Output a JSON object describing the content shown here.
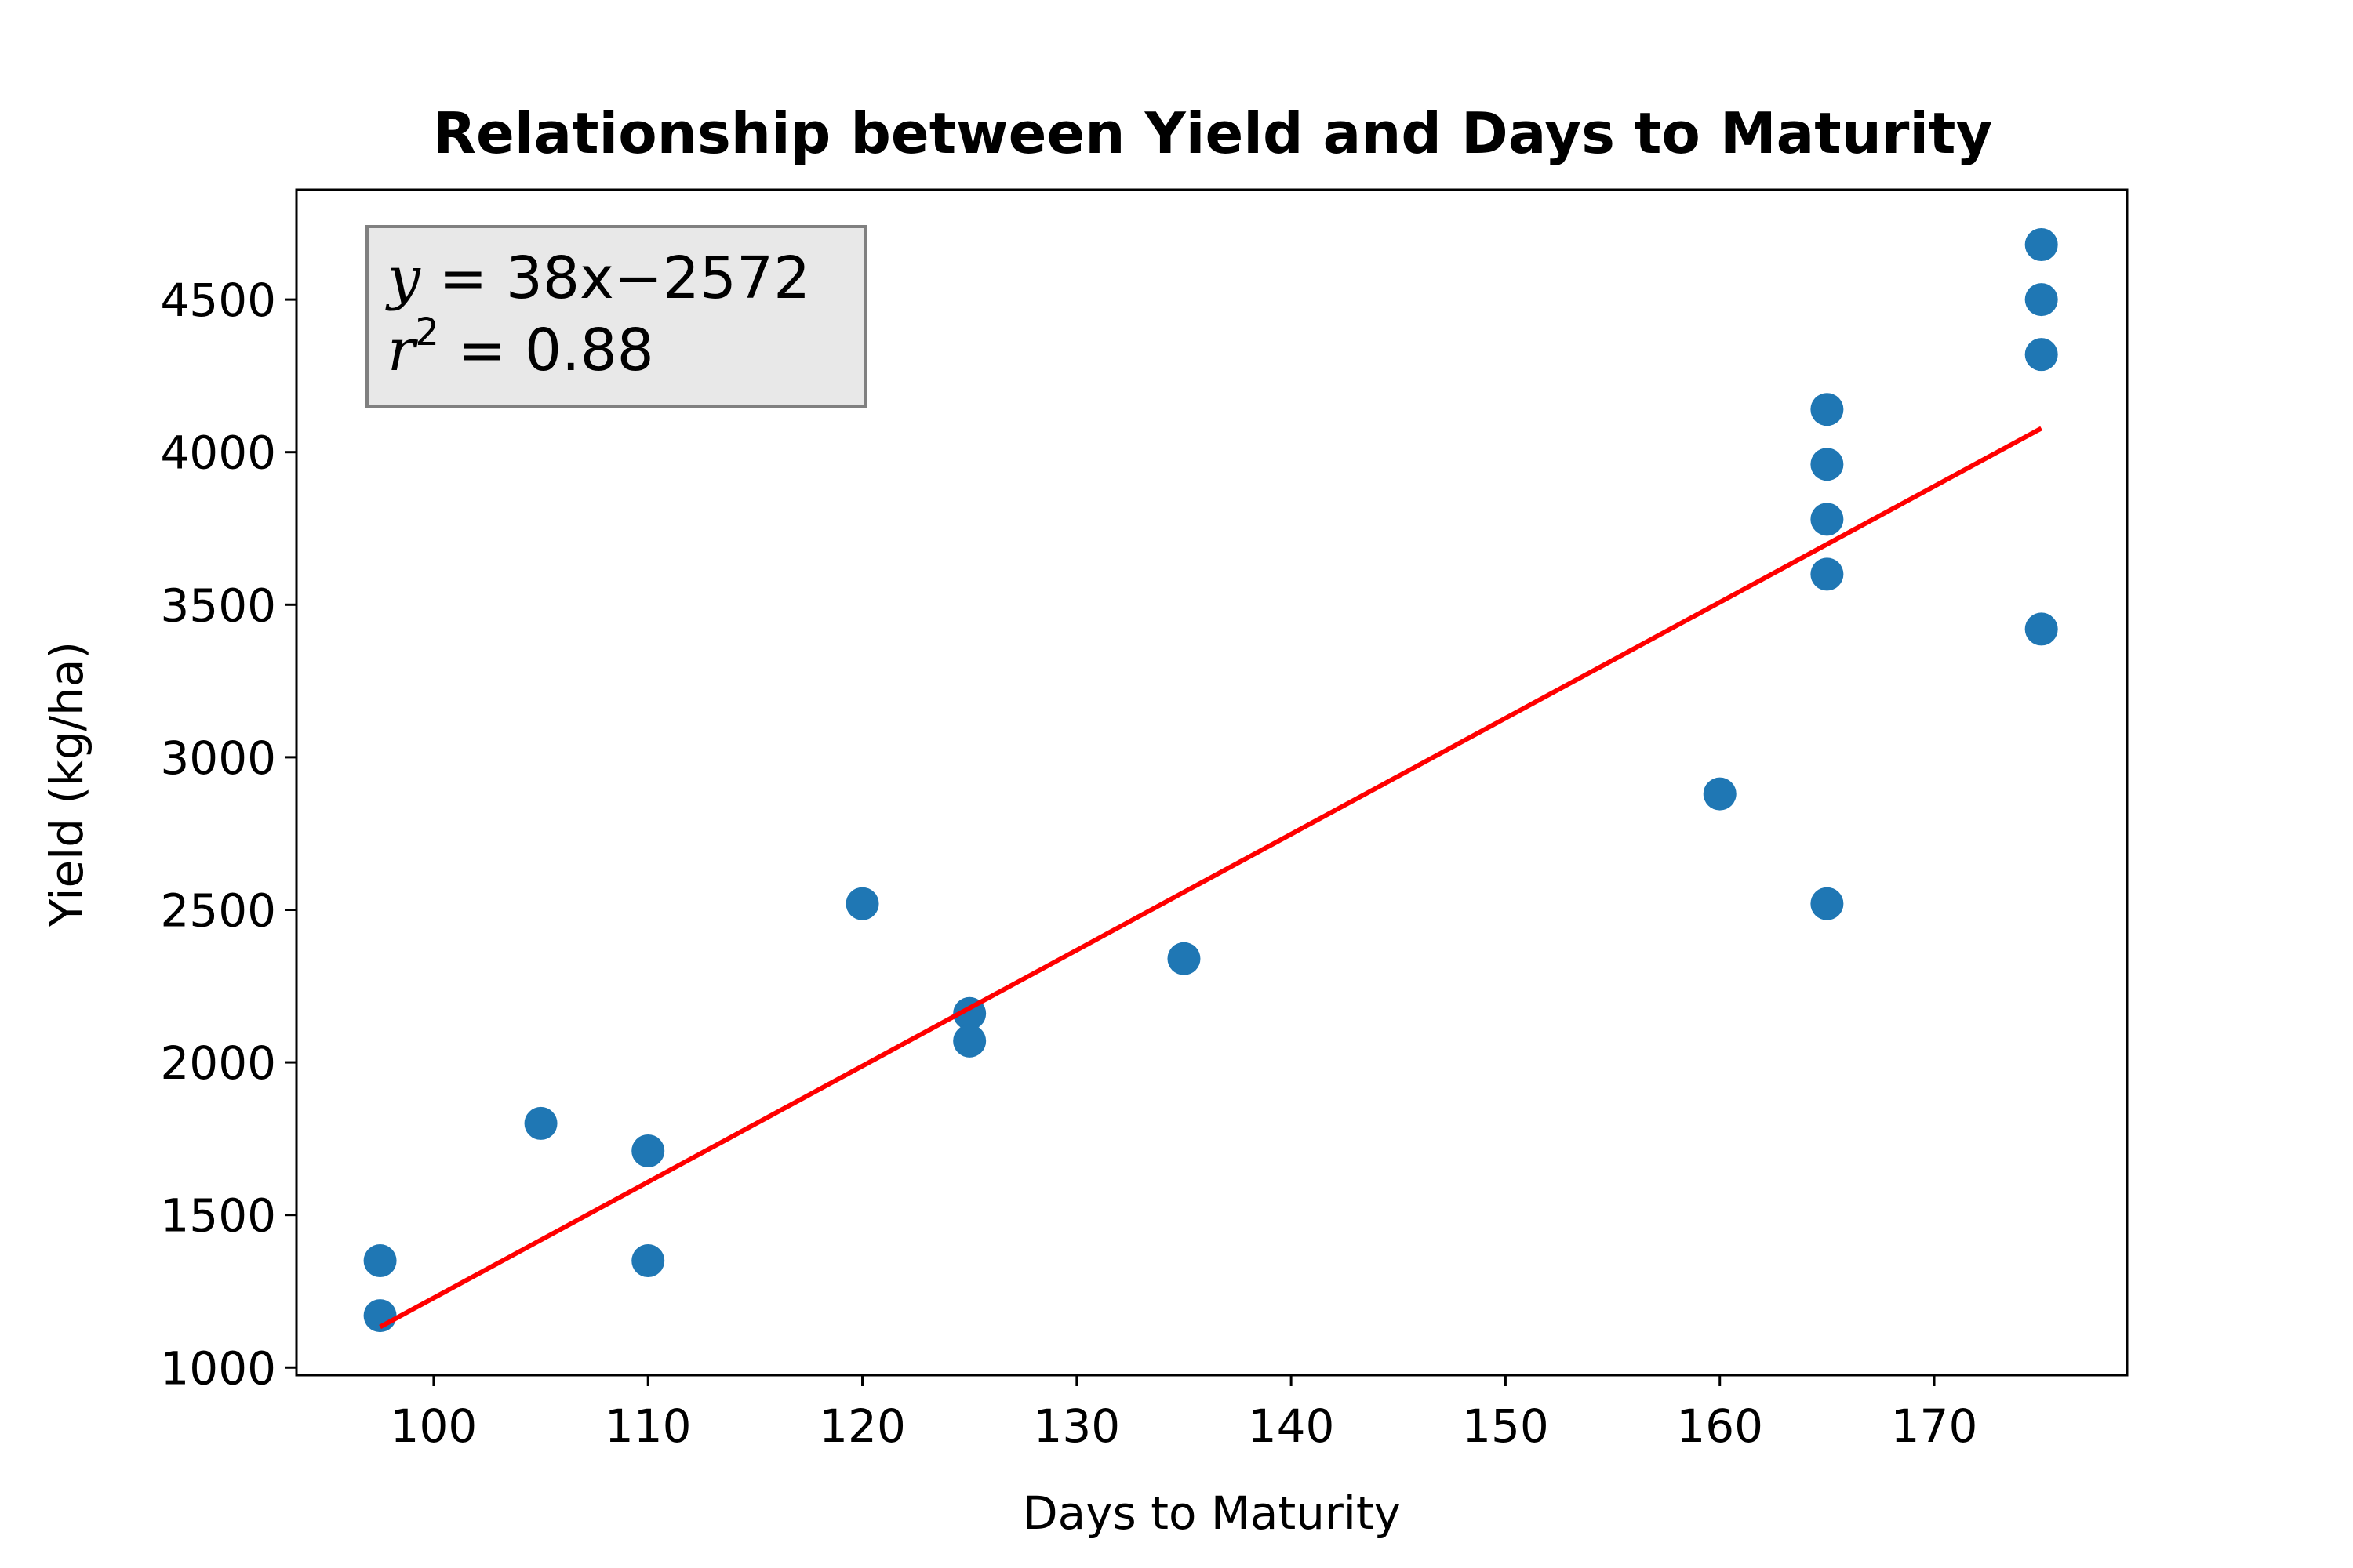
{
  "chart_data": {
    "type": "scatter",
    "title": "Relationship between Yield and Days to Maturity",
    "xlabel": "Days to Maturity",
    "ylabel": "Yield (kg/ha)",
    "xlim": [
      93.6,
      179.0
    ],
    "ylim": [
      975,
      4860
    ],
    "xticks": [
      100,
      110,
      120,
      130,
      140,
      150,
      160,
      170
    ],
    "yticks": [
      1000,
      1500,
      2000,
      2500,
      3000,
      3500,
      4000,
      4500
    ],
    "grid": false,
    "series": [
      {
        "color": "#1f77b4",
        "points": [
          {
            "x": 97.5,
            "y": 1350
          },
          {
            "x": 97.5,
            "y": 1170
          },
          {
            "x": 105,
            "y": 1800
          },
          {
            "x": 110,
            "y": 1710
          },
          {
            "x": 110,
            "y": 1350
          },
          {
            "x": 120,
            "y": 2520
          },
          {
            "x": 125,
            "y": 2160
          },
          {
            "x": 125,
            "y": 2070
          },
          {
            "x": 135,
            "y": 2340
          },
          {
            "x": 160,
            "y": 2880
          },
          {
            "x": 165,
            "y": 4140
          },
          {
            "x": 165,
            "y": 3960
          },
          {
            "x": 165,
            "y": 3780
          },
          {
            "x": 165,
            "y": 3600
          },
          {
            "x": 165,
            "y": 2520
          },
          {
            "x": 175,
            "y": 4680
          },
          {
            "x": 175,
            "y": 4500
          },
          {
            "x": 175,
            "y": 4320
          },
          {
            "x": 175,
            "y": 3420
          }
        ]
      }
    ],
    "fit_line": {
      "color": "#ff0000",
      "slope": 38,
      "intercept": -2572,
      "x_range": [
        97.5,
        175
      ]
    },
    "annotation": {
      "equation_y": "y",
      "equation_eq": " = ",
      "equation_rest": "38x−2572",
      "r_symbol": "r",
      "r_exponent": "2",
      "r_rest": " = 0.88",
      "background": "#e8e8e8",
      "border": "#808080",
      "placement": "top-left"
    }
  }
}
